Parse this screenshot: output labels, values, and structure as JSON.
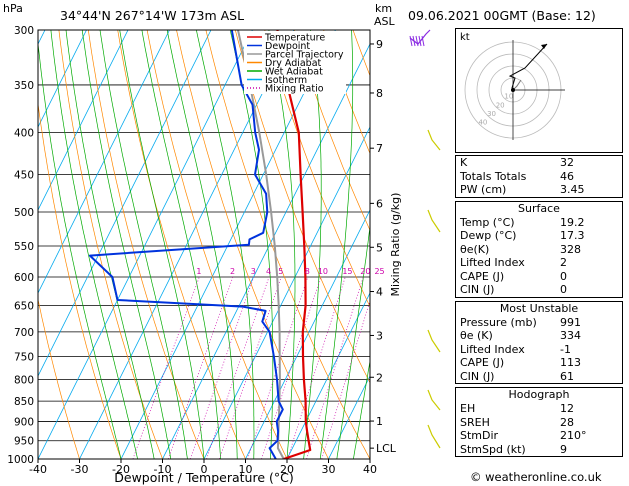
{
  "header": {
    "hpa_label": "hPa",
    "location": "34°44'N  267°14'W  173m  ASL",
    "km_label": "km",
    "asl_label": "ASL",
    "datetime": "09.06.2021  00GMT  (Base: 12)"
  },
  "chart_data": {
    "type": "skew-t log-p",
    "xlabel": "Dewpoint / Temperature (°C)",
    "ylabel_right": "Mixing Ratio (g/kg)",
    "x_ticks": [
      -40,
      -30,
      -20,
      -10,
      0,
      10,
      20,
      30,
      40
    ],
    "pressure_levels": [
      300,
      350,
      400,
      450,
      500,
      550,
      600,
      650,
      700,
      750,
      800,
      850,
      900,
      950,
      1000
    ],
    "km_ticks": [
      {
        "label": "9",
        "p": 312
      },
      {
        "label": "8",
        "p": 358
      },
      {
        "label": "7",
        "p": 418
      },
      {
        "label": "6",
        "p": 488
      },
      {
        "label": "5",
        "p": 552
      },
      {
        "label": "4",
        "p": 625
      },
      {
        "label": "3",
        "p": 707
      },
      {
        "label": "2",
        "p": 795
      },
      {
        "label": "1",
        "p": 899
      },
      {
        "label": "LCL",
        "p": 970
      }
    ],
    "mixing_ratio_labels": [
      "1",
      "2",
      "3",
      "4",
      "5",
      "8",
      "10",
      "15",
      "20",
      "25"
    ],
    "legend": [
      {
        "name": "Temperature",
        "color": "#dd0000"
      },
      {
        "name": "Dewpoint",
        "color": "#0033dd"
      },
      {
        "name": "Parcel Trajectory",
        "color": "#999999"
      },
      {
        "name": "Dry Adiabat",
        "color": "#ff8800"
      },
      {
        "name": "Wet Adiabat",
        "color": "#00aa00"
      },
      {
        "name": "Isotherm",
        "color": "#00aaee"
      },
      {
        "name": "Mixing Ratio",
        "color": "#cc00aa"
      }
    ],
    "temperature": [
      {
        "p": 1000,
        "t": 19.2
      },
      {
        "p": 975,
        "t": 24.5
      },
      {
        "p": 950,
        "t": 23.0
      },
      {
        "p": 925,
        "t": 21.5
      },
      {
        "p": 900,
        "t": 20.0
      },
      {
        "p": 850,
        "t": 17.5
      },
      {
        "p": 800,
        "t": 14.5
      },
      {
        "p": 750,
        "t": 11.5
      },
      {
        "p": 700,
        "t": 8.5
      },
      {
        "p": 650,
        "t": 6.0
      },
      {
        "p": 600,
        "t": 2.5
      },
      {
        "p": 550,
        "t": -1.5
      },
      {
        "p": 500,
        "t": -6.0
      },
      {
        "p": 450,
        "t": -11.0
      },
      {
        "p": 400,
        "t": -16.5
      },
      {
        "p": 350,
        "t": -25.0
      },
      {
        "p": 300,
        "t": -34.0
      }
    ],
    "dewpoint": [
      {
        "p": 1000,
        "t": 17.3
      },
      {
        "p": 970,
        "t": 14.5
      },
      {
        "p": 950,
        "t": 15.5
      },
      {
        "p": 925,
        "t": 14.5
      },
      {
        "p": 900,
        "t": 13.0
      },
      {
        "p": 870,
        "t": 13.0
      },
      {
        "p": 850,
        "t": 11.0
      },
      {
        "p": 800,
        "t": 8.0
      },
      {
        "p": 750,
        "t": 4.5
      },
      {
        "p": 700,
        "t": 0.5
      },
      {
        "p": 680,
        "t": -2.5
      },
      {
        "p": 660,
        "t": -3.0
      },
      {
        "p": 652,
        "t": -9.0
      },
      {
        "p": 640,
        "t": -40.0
      },
      {
        "p": 600,
        "t": -44.0
      },
      {
        "p": 565,
        "t": -52.0
      },
      {
        "p": 548,
        "t": -15.0
      },
      {
        "p": 540,
        "t": -15.5
      },
      {
        "p": 530,
        "t": -13.0
      },
      {
        "p": 500,
        "t": -14.5
      },
      {
        "p": 475,
        "t": -17.0
      },
      {
        "p": 450,
        "t": -22.0
      },
      {
        "p": 420,
        "t": -24.0
      },
      {
        "p": 400,
        "t": -27.0
      },
      {
        "p": 370,
        "t": -31.0
      },
      {
        "p": 350,
        "t": -36.0
      },
      {
        "p": 300,
        "t": -45.0
      }
    ],
    "parcel": [
      {
        "p": 1000,
        "t": 19.2
      },
      {
        "p": 970,
        "t": 16.5
      },
      {
        "p": 900,
        "t": 13.5
      },
      {
        "p": 850,
        "t": 11.2
      },
      {
        "p": 800,
        "t": 8.7
      },
      {
        "p": 750,
        "t": 5.9
      },
      {
        "p": 700,
        "t": 2.9
      },
      {
        "p": 650,
        "t": -0.5
      },
      {
        "p": 600,
        "t": -4.3
      },
      {
        "p": 550,
        "t": -8.6
      },
      {
        "p": 500,
        "t": -13.6
      },
      {
        "p": 450,
        "t": -19.3
      },
      {
        "p": 400,
        "t": -26.0
      },
      {
        "p": 350,
        "t": -34.0
      },
      {
        "p": 300,
        "t": -43.5
      }
    ],
    "hodograph": {
      "ring_labels": [
        "10",
        "20",
        "30",
        "40"
      ],
      "kt_label": "kt"
    }
  },
  "indices": {
    "top": [
      {
        "label": "K",
        "value": "32"
      },
      {
        "label": "Totals Totals",
        "value": "46"
      },
      {
        "label": "PW (cm)",
        "value": "3.45"
      }
    ],
    "surface": {
      "title": "Surface",
      "rows": [
        {
          "label": "Temp (°C)",
          "value": "19.2"
        },
        {
          "label": "Dewp (°C)",
          "value": "17.3"
        },
        {
          "label": "θe(K)",
          "value": "328"
        },
        {
          "label": "Lifted Index",
          "value": "2"
        },
        {
          "label": "CAPE (J)",
          "value": "0"
        },
        {
          "label": "CIN (J)",
          "value": "0"
        }
      ]
    },
    "most_unstable": {
      "title": "Most Unstable",
      "rows": [
        {
          "label": "Pressure (mb)",
          "value": "991"
        },
        {
          "label": "θe (K)",
          "value": "334"
        },
        {
          "label": "Lifted Index",
          "value": "-1"
        },
        {
          "label": "CAPE (J)",
          "value": "113"
        },
        {
          "label": "CIN (J)",
          "value": "61"
        }
      ]
    },
    "hodograph": {
      "title": "Hodograph",
      "rows": [
        {
          "label": "EH",
          "value": "12"
        },
        {
          "label": "SREH",
          "value": "28"
        },
        {
          "label": "StmDir",
          "value": "210°"
        },
        {
          "label": "StmSpd (kt)",
          "value": "9"
        }
      ]
    }
  },
  "footer": {
    "copyright": "© weatheronline.co.uk"
  }
}
